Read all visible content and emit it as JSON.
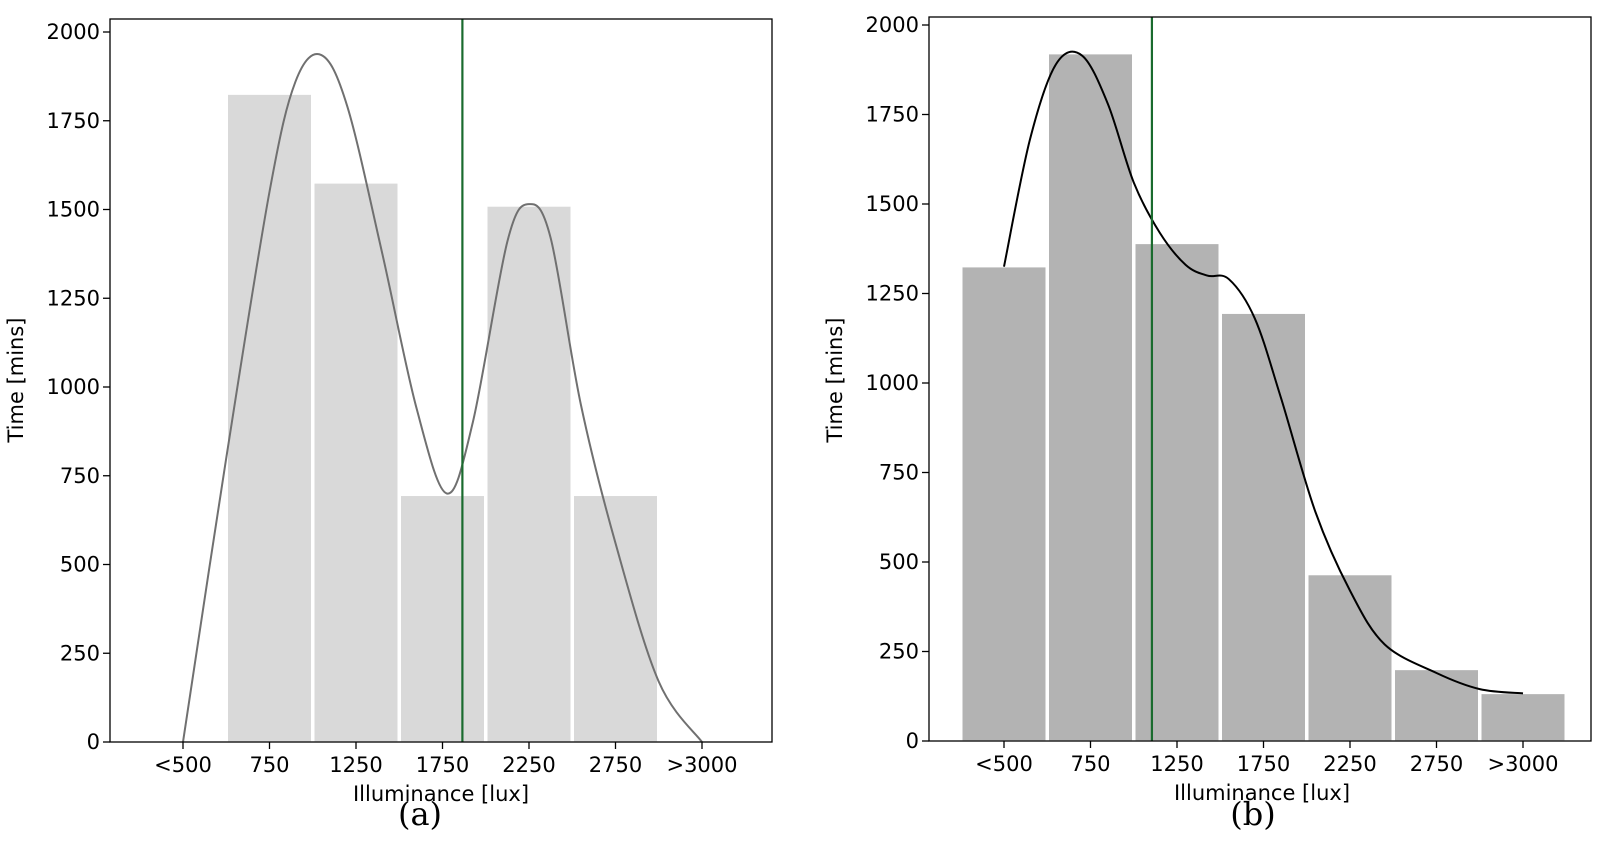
{
  "chart_data": [
    {
      "type": "bar",
      "panel": "(a)",
      "xlabel": "Illuminance [lux]",
      "ylabel": "Time [mins]",
      "ylim": [
        0,
        2000
      ],
      "yticks": [
        0,
        250,
        500,
        750,
        1000,
        1250,
        1500,
        1750,
        2000
      ],
      "xticks": [
        "<500",
        "750",
        "1250",
        "1750",
        "2250",
        "2750",
        ">3000"
      ],
      "bars": [
        {
          "category": "750",
          "value": 1825
        },
        {
          "category": "1250",
          "value": 1575
        },
        {
          "category": "1750",
          "value": 695
        },
        {
          "category": "2250",
          "value": 1510
        },
        {
          "category": "2750",
          "value": 695
        }
      ],
      "bar_color": "#d9d9d9",
      "curve_color": "#707070",
      "curve": [
        [
          0,
          0
        ],
        [
          0.5,
          800
        ],
        [
          1.0,
          1550
        ],
        [
          1.3,
          1860
        ],
        [
          1.6,
          1935
        ],
        [
          1.9,
          1790
        ],
        [
          2.3,
          1380
        ],
        [
          2.7,
          940
        ],
        [
          3.05,
          700
        ],
        [
          3.35,
          900
        ],
        [
          3.75,
          1410
        ],
        [
          4.0,
          1515
        ],
        [
          4.25,
          1420
        ],
        [
          4.6,
          950
        ],
        [
          5.0,
          560
        ],
        [
          5.5,
          170
        ],
        [
          6.0,
          0
        ]
      ],
      "reference_line_x": 3.23,
      "reference_line_color": "#1a6b2e",
      "grid": false
    },
    {
      "type": "bar",
      "panel": "(b)",
      "xlabel": "Illuminance [lux]",
      "ylabel": "Time [mins]",
      "ylim": [
        0,
        2000
      ],
      "yticks": [
        0,
        250,
        500,
        750,
        1000,
        1250,
        1500,
        1750,
        2000
      ],
      "xticks": [
        "<500",
        "750",
        "1250",
        "1750",
        "2250",
        "2750",
        ">3000"
      ],
      "bars": [
        {
          "category": "<500",
          "value": 1325
        },
        {
          "category": "750",
          "value": 1920
        },
        {
          "category": "1250",
          "value": 1390
        },
        {
          "category": "1750",
          "value": 1195
        },
        {
          "category": "2250",
          "value": 465
        },
        {
          "category": "2750",
          "value": 200
        },
        {
          "category": ">3000",
          "value": 133
        }
      ],
      "bar_color": "#b3b3b3",
      "curve_color": "#000000",
      "curve": [
        [
          0,
          1325
        ],
        [
          0.3,
          1680
        ],
        [
          0.6,
          1890
        ],
        [
          0.9,
          1915
        ],
        [
          1.2,
          1780
        ],
        [
          1.5,
          1560
        ],
        [
          1.8,
          1420
        ],
        [
          2.1,
          1330
        ],
        [
          2.35,
          1300
        ],
        [
          2.6,
          1290
        ],
        [
          2.9,
          1180
        ],
        [
          3.2,
          960
        ],
        [
          3.6,
          640
        ],
        [
          4.0,
          420
        ],
        [
          4.4,
          270
        ],
        [
          5.0,
          190
        ],
        [
          5.5,
          145
        ],
        [
          6.0,
          133
        ]
      ],
      "reference_line_x": 1.71,
      "reference_line_color": "#1a6b2e",
      "grid": false
    }
  ]
}
